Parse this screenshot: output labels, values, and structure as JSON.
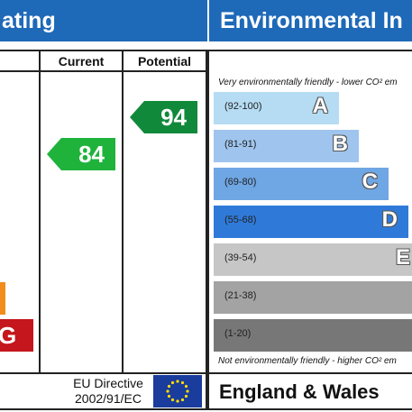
{
  "left_header": {
    "title": "ating"
  },
  "right_header": {
    "title": "Environmental In"
  },
  "columns": {
    "current": "Current",
    "potential": "Potential"
  },
  "current_rating": {
    "value": "84",
    "color": "#1fb33c"
  },
  "potential_rating": {
    "value": "94",
    "color": "#11893a"
  },
  "left_bands": [
    {
      "letter": "",
      "color": "#f28c1b"
    },
    {
      "letter": "G",
      "color": "#c4161c"
    }
  ],
  "env_top_note": "Very environmentally friendly - lower CO² em",
  "env_bottom_note": "Not environmentally friendly - higher CO² em",
  "env_bands": [
    {
      "range": "(92-100)",
      "letter": "A",
      "color": "#b5dcf3"
    },
    {
      "range": "(81-91)",
      "letter": "B",
      "color": "#9fc5ee"
    },
    {
      "range": "(69-80)",
      "letter": "C",
      "color": "#6fa6e4"
    },
    {
      "range": "(55-68)",
      "letter": "D",
      "color": "#2f7ad9"
    },
    {
      "range": "(39-54)",
      "letter": "E",
      "color": "#c6c6c6"
    },
    {
      "range": "(21-38)",
      "letter": "",
      "color": "#a3a3a3"
    },
    {
      "range": "(1-20)",
      "letter": "",
      "color": "#777777"
    }
  ],
  "footer": {
    "eu_line1": "EU Directive",
    "eu_line2": "2002/91/EC",
    "region": "England & Wales",
    "flag_icon": "eu-flag-icon"
  }
}
